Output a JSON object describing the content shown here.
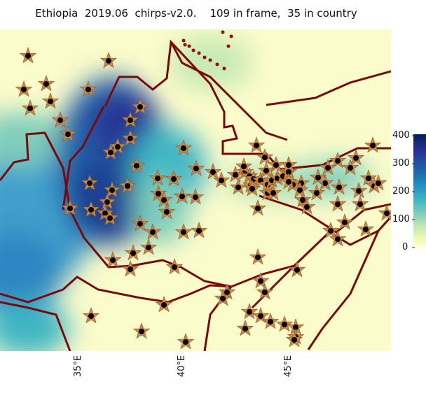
{
  "title": "Ethiopia  2019.06  chirps-v2.0.    109 in frame,  35 in country",
  "colorbar": {
    "ticks": [
      "400",
      "300",
      "200",
      "100",
      "0"
    ],
    "colors": [
      "#081d58",
      "#225ea8",
      "#1d91c0",
      "#41b6c4",
      "#7fcdbb",
      "#c7e9b4",
      "#edf8b1",
      "#ffffd9"
    ]
  },
  "lon_ticks": [
    "35°E",
    "40°E",
    "45°E"
  ],
  "map_colors": {
    "country_border": "#7a0a0a",
    "marker_fill": "#cd853f",
    "marker_center": "#000000"
  },
  "station_count_in_frame": 109,
  "station_count_in_country": 35
}
